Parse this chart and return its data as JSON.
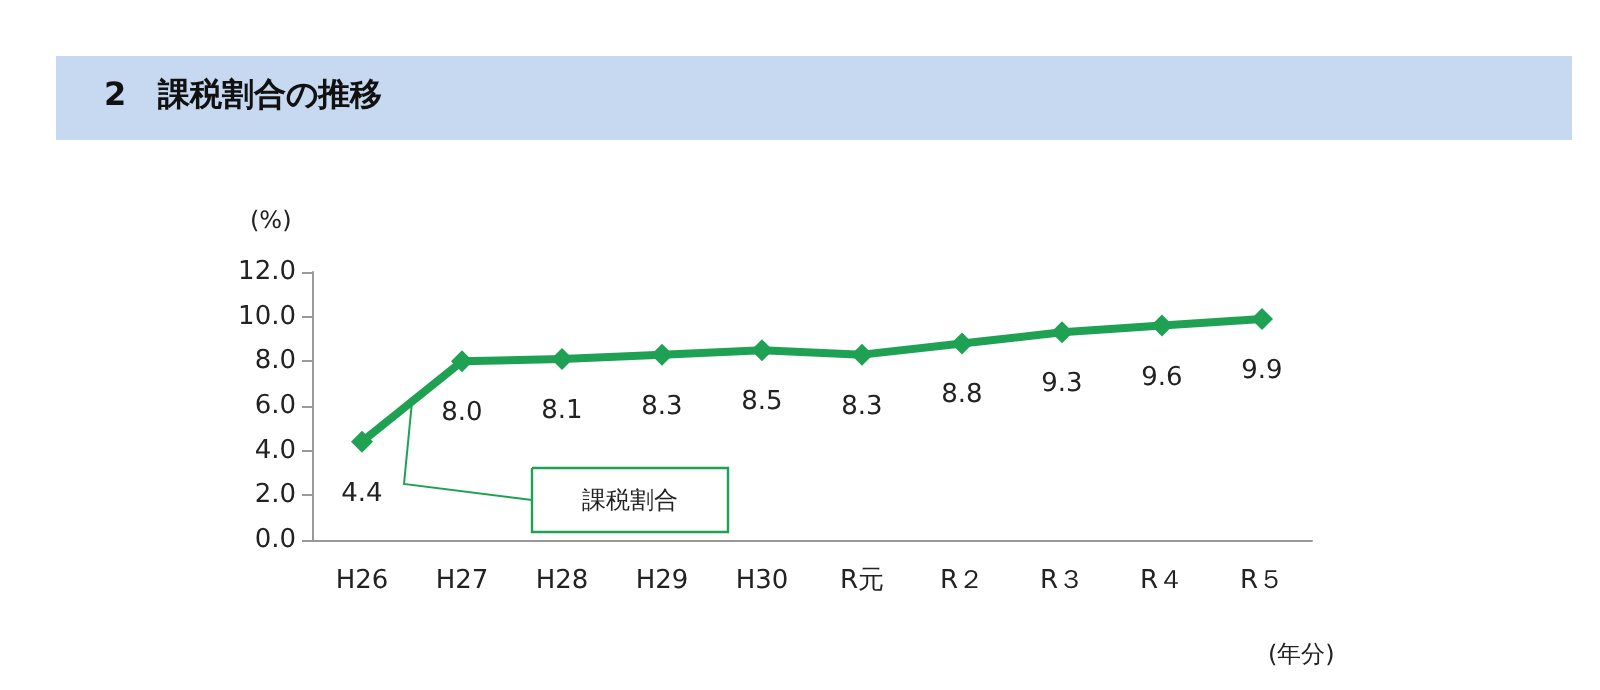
{
  "chart_data": {
    "type": "line",
    "title": "2　課税割合の推移",
    "ylabel": "(%)",
    "xlabel": "(年分)",
    "categories": [
      "H26",
      "H27",
      "H28",
      "H29",
      "H30",
      "R元",
      "R２",
      "R３",
      "R４",
      "R５"
    ],
    "series": [
      {
        "name": "課税割合",
        "color": "#1fa154",
        "values": [
          4.4,
          8.0,
          8.1,
          8.3,
          8.5,
          8.3,
          8.8,
          9.3,
          9.6,
          9.9
        ],
        "value_labels": [
          "4.4",
          "8.0",
          "8.1",
          "8.3",
          "8.5",
          "8.3",
          "8.8",
          "9.3",
          "9.6",
          "9.9"
        ]
      }
    ],
    "ylim": [
      0,
      12
    ],
    "yticks": [
      {
        "value": 0,
        "label": "0.0"
      },
      {
        "value": 2,
        "label": "2.0"
      },
      {
        "value": 4,
        "label": "4.0"
      },
      {
        "value": 6,
        "label": "6.0"
      },
      {
        "value": 8,
        "label": "8.0"
      },
      {
        "value": 10,
        "label": "10.0"
      },
      {
        "value": 12,
        "label": "12.0"
      }
    ],
    "marker": "diamond",
    "grid": false,
    "legend": false
  }
}
